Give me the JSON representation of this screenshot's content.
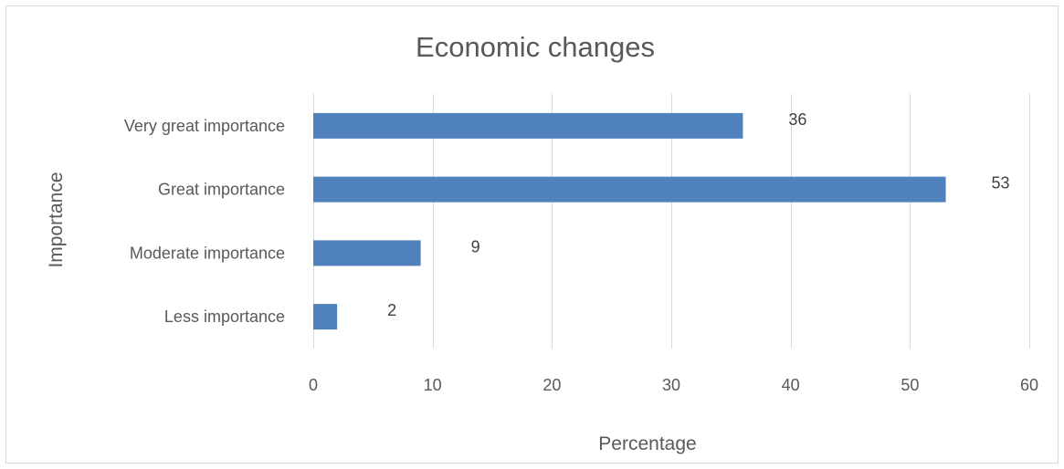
{
  "chart_data": {
    "type": "bar",
    "orientation": "horizontal",
    "title": "Economic changes",
    "xlabel": "Percentage",
    "ylabel": "Importance",
    "categories": [
      "Very great importance",
      "Great importance",
      "Moderate importance",
      "Less importance"
    ],
    "values": [
      36,
      53,
      9,
      2
    ],
    "xlim": [
      0,
      60
    ],
    "xticks": [
      0,
      10,
      20,
      30,
      40,
      50,
      60
    ],
    "grid": true,
    "legend": "none",
    "bar_color": "#4f81bd",
    "gridline_color": "#d9d9d9"
  }
}
